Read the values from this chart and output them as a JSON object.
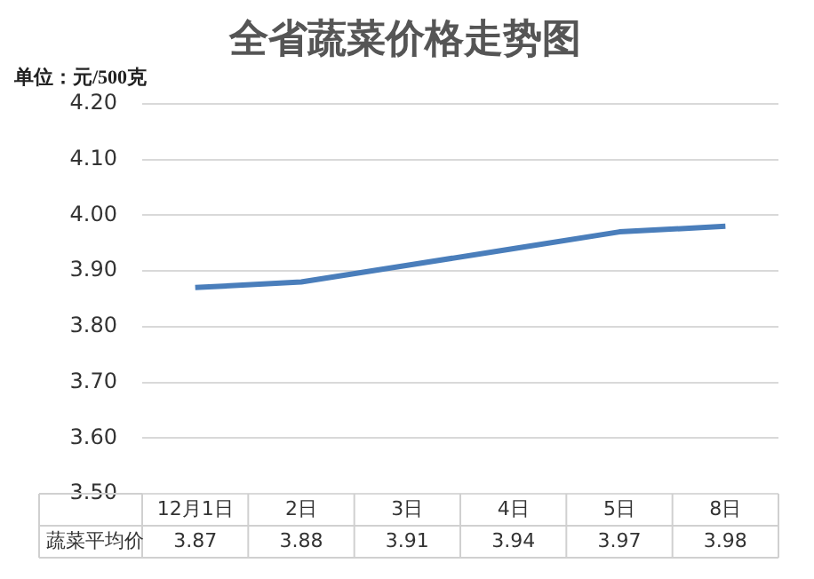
{
  "chart_data": {
    "type": "line",
    "title": "全省蔬菜价格走势图",
    "ylabel": "单位：元/500克",
    "categories": [
      "12月1日",
      "2日",
      "3日",
      "4日",
      "5日",
      "8日"
    ],
    "series": [
      {
        "name": "蔬菜平均价",
        "color": "#4a7ebb",
        "values": [
          3.87,
          3.88,
          3.91,
          3.94,
          3.97,
          3.98
        ]
      }
    ],
    "ylim": [
      3.5,
      4.2
    ],
    "yticks": [
      {
        "value": 3.5,
        "label": "3.50"
      },
      {
        "value": 3.6,
        "label": "3.60"
      },
      {
        "value": 3.7,
        "label": "3.70"
      },
      {
        "value": 3.8,
        "label": "3.80"
      },
      {
        "value": 3.9,
        "label": "3.90"
      },
      {
        "value": 4.0,
        "label": "4.00"
      },
      {
        "value": 4.1,
        "label": "4.10"
      },
      {
        "value": 4.2,
        "label": "4.20"
      }
    ],
    "grid": "y",
    "legend": false,
    "marker": "none",
    "line_style": "solid",
    "data_labels": true
  }
}
